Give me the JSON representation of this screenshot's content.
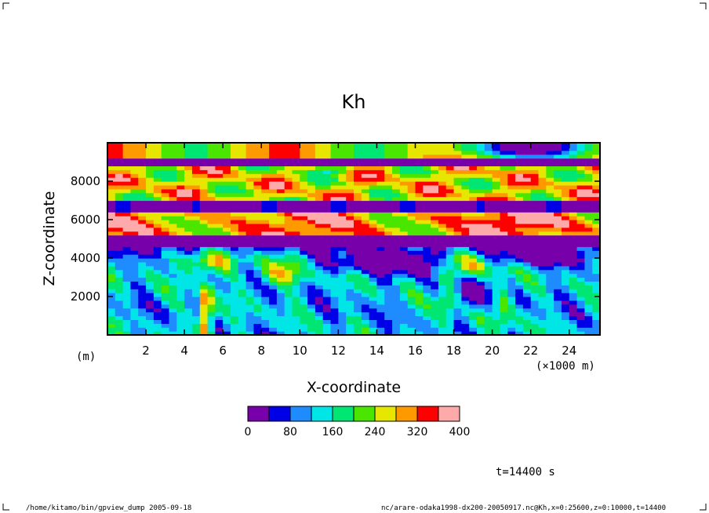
{
  "chart_data": {
    "type": "heatmap",
    "title": "Kh",
    "xlabel": "X-coordinate",
    "ylabel": "Z-coordinate",
    "x_unit": "(×1000 m)",
    "y_unit": "(m)",
    "xlim": [
      0,
      25.6
    ],
    "ylim": [
      0,
      10000
    ],
    "x_ticks": [
      2,
      4,
      6,
      8,
      10,
      12,
      14,
      16,
      18,
      20,
      22,
      24
    ],
    "y_ticks": [
      2000,
      4000,
      6000,
      8000
    ],
    "colorbar": {
      "levels": [
        0,
        40,
        80,
        120,
        160,
        200,
        240,
        280,
        320,
        360,
        400
      ],
      "labels": [
        0,
        80,
        160,
        240,
        320,
        400
      ],
      "colors": [
        "#7700aa",
        "#0000e6",
        "#1e8cff",
        "#00e6e6",
        "#00e673",
        "#4be600",
        "#e6e600",
        "#ff9900",
        "#ff0000",
        "#ffaaaa"
      ]
    },
    "annotation": "t=14400 s"
  },
  "footer": {
    "left": "/home/kitamo/bin/gpview_dump  2005-09-18",
    "right": "nc/arare-odaka1998-dx200-20050917.nc@Kh,x=0:25600,z=0:10000,t=14400"
  }
}
